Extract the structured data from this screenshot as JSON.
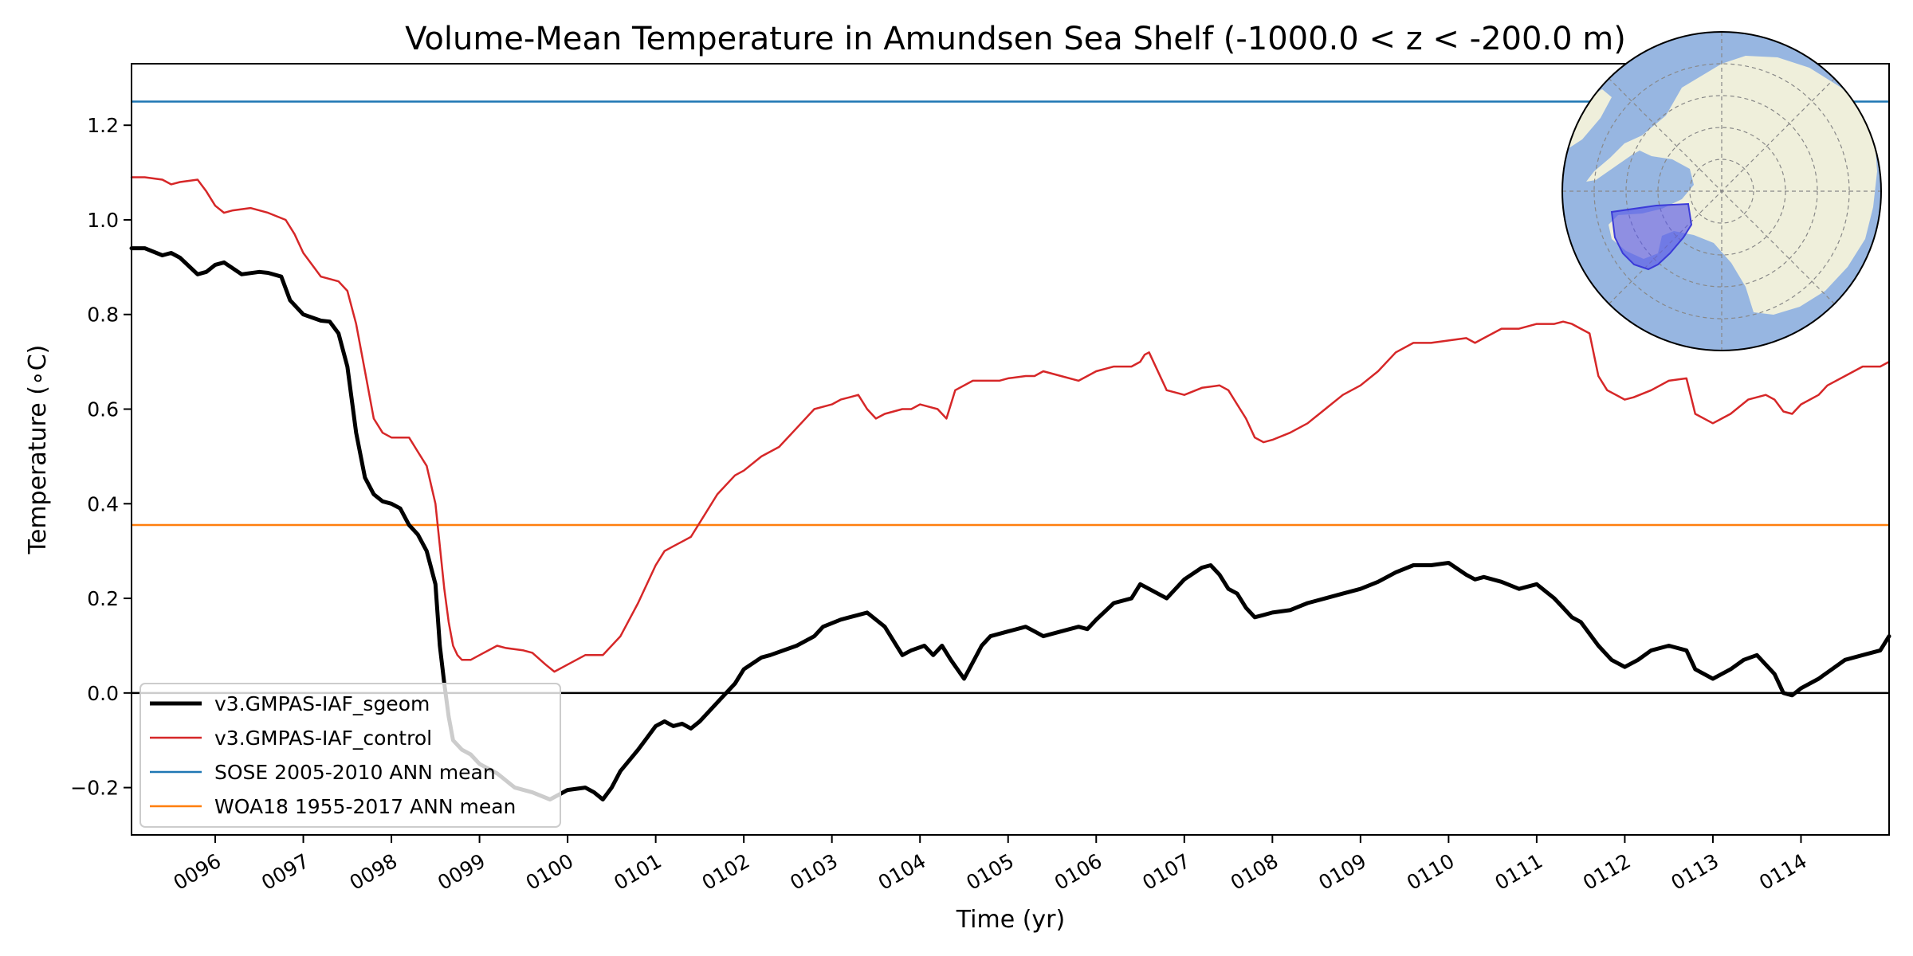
{
  "chart_data": {
    "type": "line",
    "title": "Volume-Mean Temperature in Amundsen Sea Shelf (-1000.0 < z < -200.0 m)",
    "xlabel": "Time (yr)",
    "ylabel": "Temperature (∘C)",
    "xlim": [
      95.05,
      115.0
    ],
    "ylim": [
      -0.3,
      1.33
    ],
    "x_ticks": [
      {
        "v": 96,
        "label": "0096"
      },
      {
        "v": 97,
        "label": "0097"
      },
      {
        "v": 98,
        "label": "0098"
      },
      {
        "v": 99,
        "label": "0099"
      },
      {
        "v": 100,
        "label": "0100"
      },
      {
        "v": 101,
        "label": "0101"
      },
      {
        "v": 102,
        "label": "0102"
      },
      {
        "v": 103,
        "label": "0103"
      },
      {
        "v": 104,
        "label": "0104"
      },
      {
        "v": 105,
        "label": "0105"
      },
      {
        "v": 106,
        "label": "0106"
      },
      {
        "v": 107,
        "label": "0107"
      },
      {
        "v": 108,
        "label": "0108"
      },
      {
        "v": 109,
        "label": "0109"
      },
      {
        "v": 110,
        "label": "0110"
      },
      {
        "v": 111,
        "label": "0111"
      },
      {
        "v": 112,
        "label": "0112"
      },
      {
        "v": 113,
        "label": "0113"
      },
      {
        "v": 114,
        "label": "0114"
      }
    ],
    "y_ticks": [
      {
        "v": -0.2,
        "label": "−0.2"
      },
      {
        "v": 0.0,
        "label": "0.0"
      },
      {
        "v": 0.2,
        "label": "0.2"
      },
      {
        "v": 0.4,
        "label": "0.4"
      },
      {
        "v": 0.6,
        "label": "0.6"
      },
      {
        "v": 0.8,
        "label": "0.8"
      },
      {
        "v": 1.0,
        "label": "1.0"
      },
      {
        "v": 1.2,
        "label": "1.2"
      }
    ],
    "zero_line": 0.0,
    "series": [
      {
        "name": "v3.GMPAS-IAF_sgeom",
        "color": "#000000",
        "style": "thick",
        "x": [
          95.05,
          95.2,
          95.4,
          95.5,
          95.6,
          95.8,
          95.9,
          96.0,
          96.1,
          96.3,
          96.5,
          96.6,
          96.75,
          96.85,
          97.0,
          97.2,
          97.3,
          97.4,
          97.5,
          97.6,
          97.7,
          97.8,
          97.9,
          98.0,
          98.1,
          98.2,
          98.3,
          98.4,
          98.5,
          98.55,
          98.6,
          98.65,
          98.7,
          98.8,
          98.9,
          99.0,
          99.2,
          99.4,
          99.6,
          99.8,
          100.0,
          100.2,
          100.3,
          100.4,
          100.5,
          100.6,
          100.8,
          100.9,
          101.0,
          101.1,
          101.2,
          101.3,
          101.4,
          101.5,
          101.7,
          101.9,
          102.0,
          102.2,
          102.3,
          102.45,
          102.6,
          102.8,
          102.9,
          103.1,
          103.2,
          103.3,
          103.4,
          103.6,
          103.8,
          103.9,
          104.05,
          104.15,
          104.25,
          104.35,
          104.5,
          104.7,
          104.8,
          105.0,
          105.2,
          105.3,
          105.4,
          105.6,
          105.8,
          105.9,
          106.0,
          106.2,
          106.4,
          106.5,
          106.6,
          106.8,
          107.0,
          107.2,
          107.3,
          107.4,
          107.5,
          107.6,
          107.7,
          107.8,
          107.9,
          108.0,
          108.2,
          108.4,
          108.6,
          108.8,
          109.0,
          109.2,
          109.4,
          109.6,
          109.8,
          110.0,
          110.2,
          110.3,
          110.4,
          110.6,
          110.8,
          111.0,
          111.2,
          111.3,
          111.4,
          111.5,
          111.7,
          111.85,
          112.0,
          112.15,
          112.3,
          112.5,
          112.7,
          112.8,
          113.0,
          113.2,
          113.35,
          113.5,
          113.7,
          113.8,
          113.9,
          114.0,
          114.2,
          114.35,
          114.5,
          114.7,
          114.9,
          115.0
        ],
        "y": [
          0.94,
          0.94,
          0.925,
          0.93,
          0.92,
          0.885,
          0.89,
          0.905,
          0.91,
          0.885,
          0.89,
          0.888,
          0.88,
          0.83,
          0.8,
          0.787,
          0.785,
          0.76,
          0.69,
          0.55,
          0.455,
          0.42,
          0.405,
          0.4,
          0.39,
          0.355,
          0.335,
          0.3,
          0.23,
          0.1,
          0.02,
          -0.05,
          -0.1,
          -0.12,
          -0.13,
          -0.15,
          -0.17,
          -0.2,
          -0.21,
          -0.225,
          -0.205,
          -0.2,
          -0.21,
          -0.225,
          -0.2,
          -0.165,
          -0.12,
          -0.095,
          -0.07,
          -0.06,
          -0.07,
          -0.065,
          -0.075,
          -0.06,
          -0.02,
          0.02,
          0.05,
          0.075,
          0.08,
          0.09,
          0.1,
          0.12,
          0.14,
          0.155,
          0.16,
          0.165,
          0.17,
          0.14,
          0.08,
          0.09,
          0.1,
          0.08,
          0.1,
          0.07,
          0.03,
          0.1,
          0.12,
          0.13,
          0.14,
          0.13,
          0.12,
          0.13,
          0.14,
          0.135,
          0.155,
          0.19,
          0.2,
          0.23,
          0.22,
          0.2,
          0.24,
          0.265,
          0.27,
          0.25,
          0.22,
          0.21,
          0.18,
          0.16,
          0.165,
          0.17,
          0.175,
          0.19,
          0.2,
          0.21,
          0.22,
          0.235,
          0.255,
          0.27,
          0.27,
          0.275,
          0.25,
          0.24,
          0.245,
          0.235,
          0.22,
          0.23,
          0.2,
          0.18,
          0.16,
          0.15,
          0.1,
          0.07,
          0.055,
          0.07,
          0.09,
          0.1,
          0.09,
          0.05,
          0.03,
          0.05,
          0.07,
          0.08,
          0.04,
          0.0,
          -0.005,
          0.01,
          0.03,
          0.05,
          0.07,
          0.08,
          0.09,
          0.12
        ]
      },
      {
        "name": "v3.GMPAS-IAF_control",
        "color": "#d62728",
        "style": "thin",
        "x": [
          95.05,
          95.2,
          95.4,
          95.5,
          95.6,
          95.8,
          95.9,
          96.0,
          96.1,
          96.2,
          96.4,
          96.5,
          96.6,
          96.8,
          96.9,
          97.0,
          97.2,
          97.3,
          97.4,
          97.5,
          97.6,
          97.7,
          97.8,
          97.9,
          98.0,
          98.1,
          98.2,
          98.3,
          98.4,
          98.5,
          98.6,
          98.65,
          98.7,
          98.75,
          98.8,
          98.9,
          99.0,
          99.2,
          99.3,
          99.5,
          99.6,
          99.75,
          99.85,
          100.0,
          100.2,
          100.4,
          100.6,
          100.8,
          101.0,
          101.1,
          101.2,
          101.3,
          101.4,
          101.5,
          101.7,
          101.9,
          102.0,
          102.2,
          102.4,
          102.6,
          102.8,
          103.0,
          103.1,
          103.2,
          103.3,
          103.4,
          103.5,
          103.6,
          103.8,
          103.9,
          104.0,
          104.1,
          104.2,
          104.3,
          104.4,
          104.6,
          104.7,
          104.9,
          105.0,
          105.2,
          105.3,
          105.4,
          105.6,
          105.8,
          105.9,
          106.0,
          106.2,
          106.4,
          106.5,
          106.55,
          106.6,
          106.8,
          106.9,
          107.0,
          107.2,
          107.4,
          107.5,
          107.6,
          107.7,
          107.8,
          107.9,
          108.0,
          108.2,
          108.4,
          108.6,
          108.8,
          109.0,
          109.2,
          109.4,
          109.6,
          109.8,
          110.0,
          110.2,
          110.3,
          110.4,
          110.6,
          110.8,
          111.0,
          111.2,
          111.3,
          111.4,
          111.5,
          111.6,
          111.7,
          111.8,
          112.0,
          112.1,
          112.3,
          112.5,
          112.7,
          112.8,
          113.0,
          113.2,
          113.4,
          113.6,
          113.7,
          113.8,
          113.9,
          114.0,
          114.2,
          114.3,
          114.5,
          114.7,
          114.9,
          115.0
        ],
        "y": [
          1.09,
          1.09,
          1.085,
          1.075,
          1.08,
          1.085,
          1.06,
          1.03,
          1.015,
          1.02,
          1.025,
          1.02,
          1.015,
          1.0,
          0.97,
          0.93,
          0.88,
          0.875,
          0.87,
          0.85,
          0.78,
          0.68,
          0.58,
          0.55,
          0.54,
          0.54,
          0.54,
          0.51,
          0.48,
          0.4,
          0.22,
          0.15,
          0.1,
          0.08,
          0.07,
          0.07,
          0.08,
          0.1,
          0.095,
          0.09,
          0.085,
          0.06,
          0.045,
          0.06,
          0.08,
          0.08,
          0.12,
          0.19,
          0.27,
          0.3,
          0.31,
          0.32,
          0.33,
          0.36,
          0.42,
          0.46,
          0.47,
          0.5,
          0.52,
          0.56,
          0.6,
          0.61,
          0.62,
          0.625,
          0.63,
          0.6,
          0.58,
          0.59,
          0.6,
          0.6,
          0.61,
          0.605,
          0.6,
          0.58,
          0.64,
          0.66,
          0.66,
          0.66,
          0.665,
          0.67,
          0.67,
          0.68,
          0.67,
          0.66,
          0.67,
          0.68,
          0.69,
          0.69,
          0.7,
          0.715,
          0.72,
          0.64,
          0.635,
          0.63,
          0.645,
          0.65,
          0.64,
          0.61,
          0.58,
          0.54,
          0.53,
          0.535,
          0.55,
          0.57,
          0.6,
          0.63,
          0.65,
          0.68,
          0.72,
          0.74,
          0.74,
          0.745,
          0.75,
          0.74,
          0.75,
          0.77,
          0.77,
          0.78,
          0.78,
          0.785,
          0.78,
          0.77,
          0.76,
          0.67,
          0.64,
          0.62,
          0.625,
          0.64,
          0.66,
          0.665,
          0.59,
          0.57,
          0.59,
          0.62,
          0.63,
          0.62,
          0.595,
          0.59,
          0.61,
          0.63,
          0.65,
          0.67,
          0.69,
          0.69,
          0.7
        ]
      }
    ],
    "reference_lines": [
      {
        "name": "SOSE 2005-2010 ANN mean",
        "color": "#1f77b4",
        "value": 1.25
      },
      {
        "name": "WOA18 1955-2017 ANN mean",
        "color": "#ff7f0e",
        "value": 0.355
      }
    ],
    "legend_position": "lower-left",
    "inset_map": {
      "description_name": "antarctic-region-map",
      "ocean_color": "#97b6e1",
      "land_color": "#efefdb",
      "region_color": "#5a5ae6"
    }
  }
}
